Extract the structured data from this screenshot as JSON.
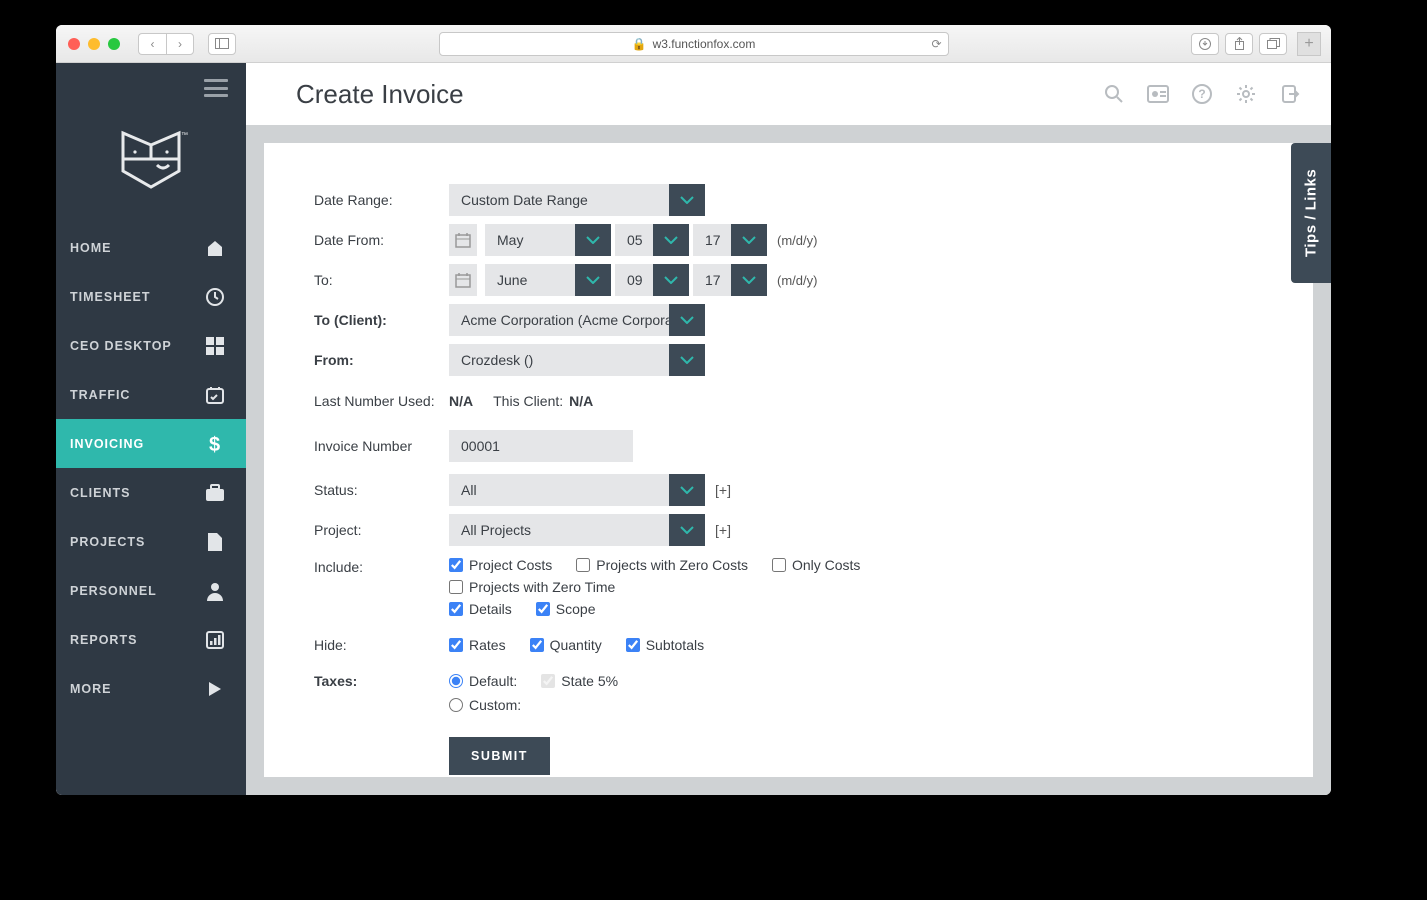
{
  "browser": {
    "url": "w3.functionfox.com"
  },
  "page": {
    "title": "Create Invoice"
  },
  "sidebar": {
    "items": [
      {
        "label": "HOME",
        "icon": "home"
      },
      {
        "label": "TIMESHEET",
        "icon": "clock"
      },
      {
        "label": "CEO DESKTOP",
        "icon": "grid"
      },
      {
        "label": "TRAFFIC",
        "icon": "calendar-check"
      },
      {
        "label": "INVOICING",
        "icon": "dollar",
        "active": true
      },
      {
        "label": "CLIENTS",
        "icon": "briefcase"
      },
      {
        "label": "PROJECTS",
        "icon": "file"
      },
      {
        "label": "PERSONNEL",
        "icon": "person"
      },
      {
        "label": "REPORTS",
        "icon": "bar-chart"
      },
      {
        "label": "MORE",
        "icon": "play"
      }
    ]
  },
  "tips_label": "Tips / Links",
  "form": {
    "date_range_label": "Date Range:",
    "date_range_value": "Custom Date Range",
    "date_from_label": "Date From:",
    "from_month": "May",
    "from_day": "05",
    "from_year": "17",
    "to_label": "To:",
    "to_month": "June",
    "to_day": "09",
    "to_year": "17",
    "mdy_hint": "(m/d/y)",
    "client_label": "To (Client):",
    "client_value": "Acme Corporation (Acme Corporat",
    "from_company_label": "From:",
    "from_company_value": "Crozdesk ()",
    "last_number_label": "Last Number Used:",
    "last_number_value": "N/A",
    "this_client_label": "This Client:",
    "this_client_value": "N/A",
    "invoice_number_label": "Invoice Number",
    "invoice_number_value": "00001",
    "status_label": "Status:",
    "status_value": "All",
    "project_label": "Project:",
    "project_value": "All Projects",
    "plus": "[+]",
    "include_label": "Include:",
    "include_opts": {
      "project_costs": "Project Costs",
      "projects_zero_costs": "Projects with Zero Costs",
      "only_costs": "Only Costs",
      "projects_zero_time": "Projects with Zero Time",
      "details": "Details",
      "scope": "Scope"
    },
    "hide_label": "Hide:",
    "hide_opts": {
      "rates": "Rates",
      "quantity": "Quantity",
      "subtotals": "Subtotals"
    },
    "taxes_label": "Taxes:",
    "tax_default": "Default:",
    "tax_state": "State 5%",
    "tax_custom": "Custom:",
    "submit": "SUBMIT"
  },
  "colors": {
    "sidebar_bg": "#2f3944",
    "accent": "#2fb8ac",
    "select_arrow_bg": "#3d4a56",
    "field_bg": "#e5e6e8",
    "page_bg": "#cfd2d4"
  }
}
